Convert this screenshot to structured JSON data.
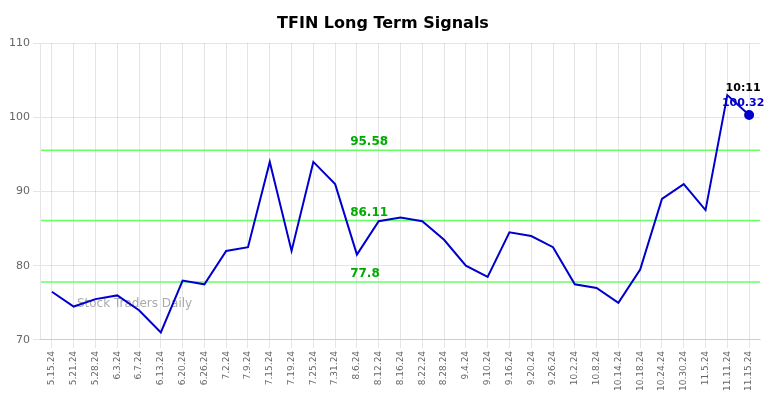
{
  "chart_data": {
    "type": "line",
    "title": "TFIN Long Term Signals",
    "categories": [
      "5.15.24",
      "5.21.24",
      "5.28.24",
      "6.3.24",
      "6.7.24",
      "6.13.24",
      "6.20.24",
      "6.26.24",
      "7.2.24",
      "7.9.24",
      "7.15.24",
      "7.19.24",
      "7.25.24",
      "7.31.24",
      "8.6.24",
      "8.12.24",
      "8.16.24",
      "8.22.24",
      "8.28.24",
      "9.4.24",
      "9.10.24",
      "9.16.24",
      "9.20.24",
      "9.26.24",
      "10.2.24",
      "10.8.24",
      "10.14.24",
      "10.18.24",
      "10.24.24",
      "10.30.24",
      "11.5.24",
      "11.11.24",
      "11.15.24"
    ],
    "values": [
      76.5,
      74.5,
      75.5,
      76.0,
      74.0,
      71.0,
      78.0,
      77.5,
      82.0,
      82.5,
      94.0,
      82.0,
      94.0,
      91.0,
      81.5,
      86.0,
      86.5,
      86.0,
      83.5,
      80.0,
      78.5,
      84.5,
      84.0,
      82.5,
      77.5,
      77.0,
      75.0,
      79.5,
      89.0,
      91.0,
      87.5,
      103.0,
      100.32
    ],
    "value_labels": [
      null,
      null,
      null,
      null,
      null,
      null,
      null,
      null,
      null,
      null,
      null,
      null,
      null,
      null,
      null,
      null,
      null,
      null,
      null,
      null,
      null,
      null,
      null,
      null,
      null,
      null,
      null,
      null,
      null,
      null,
      null,
      null,
      "100.32"
    ],
    "color": "#0000cc",
    "annotations": [
      {
        "text": "10:11",
        "x": "11.15.24"
      }
    ],
    "watermark": "Stock Traders Daily",
    "horizontal_lines": [
      {
        "value": 95.58,
        "label": "95.58",
        "color": "#66ff66",
        "label_color": "#00aa00"
      },
      {
        "value": 86.11,
        "label": "86.11",
        "color": "#66ff66",
        "label_color": "#00aa00"
      },
      {
        "value": 77.8,
        "label": "77.8",
        "color": "#66ff66",
        "label_color": "#00aa00"
      }
    ],
    "ylim": [
      70,
      110
    ],
    "yticks": [
      70,
      80,
      90,
      100,
      110
    ],
    "grid": true
  }
}
